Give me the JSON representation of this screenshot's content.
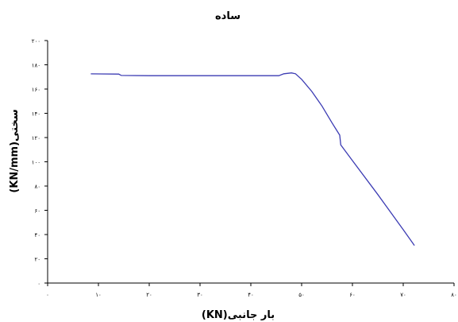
{
  "chart_data": {
    "type": "line",
    "title": "ساده",
    "xlabel": "بار جانبی(KN)",
    "ylabel": "سختی(KN/mm)",
    "xlim": [
      0,
      80
    ],
    "ylim": [
      0,
      200
    ],
    "x_ticks": [
      "۰",
      "۱۰",
      "۲۰",
      "۳۰",
      "۴۰",
      "۵۰",
      "۶۰",
      "۷۰",
      "۸۰"
    ],
    "y_ticks": [
      "۰",
      "۲۰",
      "۴۰",
      "۶۰",
      "۸۰",
      "۱۰۰",
      "۱۲۰",
      "۱۴۰",
      "۱۶۰",
      "۱۸۰",
      "۲۰۰"
    ],
    "grid": false,
    "legend": "none",
    "series": [
      {
        "color": "#3b3bb3",
        "points": [
          [
            8.5,
            172.5
          ],
          [
            14,
            172.3
          ],
          [
            14.5,
            171.2
          ],
          [
            20,
            171.0
          ],
          [
            30,
            171.0
          ],
          [
            40,
            171.0
          ],
          [
            45.5,
            171.0
          ],
          [
            46.5,
            172.6
          ],
          [
            48,
            173.3
          ],
          [
            48.8,
            172.6
          ],
          [
            50,
            168
          ],
          [
            52,
            158
          ],
          [
            54,
            146
          ],
          [
            56,
            132
          ],
          [
            57.5,
            122
          ],
          [
            57.7,
            114
          ],
          [
            60,
            101
          ],
          [
            65,
            73
          ],
          [
            70,
            44
          ],
          [
            72.2,
            31
          ]
        ]
      }
    ]
  }
}
